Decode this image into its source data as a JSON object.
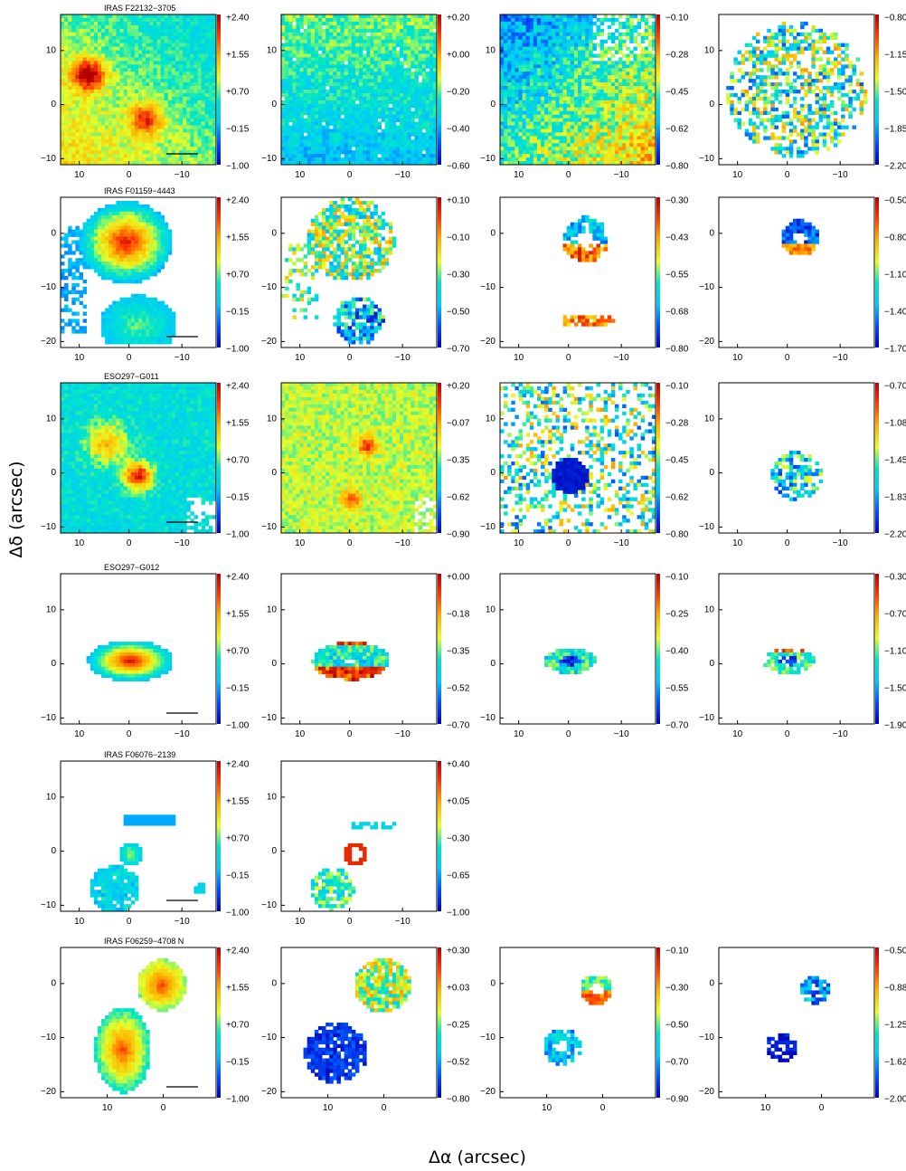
{
  "figure": {
    "xlabel": "Δα (arcsec)",
    "ylabel": "Δδ (arcsec)"
  },
  "colors": {
    "colormap": [
      "#0000b4",
      "#0050ff",
      "#00c8ff",
      "#00e6c8",
      "#e6ff28",
      "#ffb400",
      "#ff3c00",
      "#b40000"
    ]
  },
  "chart_data": [
    {
      "type": "heatmap",
      "title": "IRAS F22132−3705",
      "x_ticks": [
        "10",
        "0",
        "−10"
      ],
      "y_ticks": [
        "10",
        "0",
        "−10"
      ],
      "colorbar_ticks": [
        "+2.40",
        "+1.55",
        "+0.70",
        "−0.15",
        "−1.00"
      ],
      "scale_bar": true
    },
    {
      "type": "heatmap",
      "title": "",
      "x_ticks": [
        "10",
        "0",
        "−10"
      ],
      "y_ticks": [
        "10",
        "0",
        "−10"
      ],
      "colorbar_ticks": [
        "+0.20",
        "+0.00",
        "−0.20",
        "−0.40",
        "−0.60"
      ]
    },
    {
      "type": "heatmap",
      "title": "",
      "x_ticks": [
        "10",
        "0",
        "−10"
      ],
      "y_ticks": [
        "10",
        "0",
        "−10"
      ],
      "colorbar_ticks": [
        "−0.10",
        "−0.28",
        "−0.45",
        "−0.62",
        "−0.80"
      ]
    },
    {
      "type": "heatmap",
      "title": "",
      "x_ticks": [
        "10",
        "0",
        "−10"
      ],
      "y_ticks": [
        "10",
        "0",
        "−10"
      ],
      "colorbar_ticks": [
        "−0.80",
        "−1.15",
        "−1.50",
        "−1.85",
        "−2.20"
      ]
    },
    {
      "type": "heatmap",
      "title": "IRAS F01159−4443",
      "x_ticks": [
        "10",
        "0",
        "−10"
      ],
      "y_ticks": [
        "0",
        "−10",
        "−20"
      ],
      "colorbar_ticks": [
        "+2.40",
        "+1.55",
        "+0.70",
        "−0.15",
        "−1.00"
      ],
      "scale_bar": true
    },
    {
      "type": "heatmap",
      "title": "",
      "x_ticks": [
        "10",
        "0",
        "−10"
      ],
      "y_ticks": [
        "0",
        "−10",
        "−20"
      ],
      "colorbar_ticks": [
        "+0.10",
        "−0.10",
        "−0.30",
        "−0.50",
        "−0.70"
      ]
    },
    {
      "type": "heatmap",
      "title": "",
      "x_ticks": [
        "10",
        "0",
        "−10"
      ],
      "y_ticks": [
        "0",
        "−10",
        "−20"
      ],
      "colorbar_ticks": [
        "−0.30",
        "−0.43",
        "−0.55",
        "−0.68",
        "−0.80"
      ]
    },
    {
      "type": "heatmap",
      "title": "",
      "x_ticks": [
        "10",
        "0",
        "−10"
      ],
      "y_ticks": [
        "0",
        "−10",
        "−20"
      ],
      "colorbar_ticks": [
        "−0.50",
        "−0.80",
        "−1.10",
        "−1.40",
        "−1.70"
      ]
    },
    {
      "type": "heatmap",
      "title": "ESO297−G011",
      "x_ticks": [
        "10",
        "0",
        "−10"
      ],
      "y_ticks": [
        "10",
        "0",
        "−10"
      ],
      "colorbar_ticks": [
        "+2.40",
        "+1.55",
        "+0.70",
        "−0.15",
        "−1.00"
      ],
      "scale_bar": true
    },
    {
      "type": "heatmap",
      "title": "",
      "x_ticks": [
        "10",
        "0",
        "−10"
      ],
      "y_ticks": [
        "10",
        "0",
        "−10"
      ],
      "colorbar_ticks": [
        "+0.20",
        "−0.07",
        "−0.35",
        "−0.62",
        "−0.90"
      ]
    },
    {
      "type": "heatmap",
      "title": "",
      "x_ticks": [
        "10",
        "0",
        "−10"
      ],
      "y_ticks": [
        "10",
        "0",
        "−10"
      ],
      "colorbar_ticks": [
        "−0.10",
        "−0.28",
        "−0.45",
        "−0.62",
        "−0.80"
      ]
    },
    {
      "type": "heatmap",
      "title": "",
      "x_ticks": [
        "10",
        "0",
        "−10"
      ],
      "y_ticks": [
        "10",
        "0",
        "−10"
      ],
      "colorbar_ticks": [
        "−0.70",
        "−1.08",
        "−1.45",
        "−1.83",
        "−2.20"
      ]
    },
    {
      "type": "heatmap",
      "title": "ESO297−G012",
      "x_ticks": [
        "10",
        "0",
        "−10"
      ],
      "y_ticks": [
        "10",
        "0",
        "−10"
      ],
      "colorbar_ticks": [
        "+2.40",
        "+1.55",
        "+0.70",
        "−0.15",
        "−1.00"
      ],
      "scale_bar": true
    },
    {
      "type": "heatmap",
      "title": "",
      "x_ticks": [
        "10",
        "0",
        "−10"
      ],
      "y_ticks": [
        "10",
        "0",
        "−10"
      ],
      "colorbar_ticks": [
        "+0.00",
        "−0.18",
        "−0.35",
        "−0.52",
        "−0.70"
      ]
    },
    {
      "type": "heatmap",
      "title": "",
      "x_ticks": [
        "10",
        "0",
        "−10"
      ],
      "y_ticks": [
        "10",
        "0",
        "−10"
      ],
      "colorbar_ticks": [
        "−0.10",
        "−0.25",
        "−0.40",
        "−0.55",
        "−0.70"
      ]
    },
    {
      "type": "heatmap",
      "title": "",
      "x_ticks": [
        "10",
        "0",
        "−10"
      ],
      "y_ticks": [
        "10",
        "0",
        "−10"
      ],
      "colorbar_ticks": [
        "−0.30",
        "−0.70",
        "−1.10",
        "−1.50",
        "−1.90"
      ]
    },
    {
      "type": "heatmap",
      "title": "IRAS F06076−2139",
      "x_ticks": [
        "10",
        "0",
        "−10"
      ],
      "y_ticks": [
        "10",
        "0",
        "−10"
      ],
      "colorbar_ticks": [
        "+2.40",
        "+1.55",
        "+0.70",
        "−0.15",
        "−1.00"
      ],
      "scale_bar": true
    },
    {
      "type": "heatmap",
      "title": "",
      "x_ticks": [
        "10",
        "0",
        "−10"
      ],
      "y_ticks": [
        "10",
        "0",
        "−10"
      ],
      "colorbar_ticks": [
        "+0.40",
        "+0.05",
        "−0.30",
        "−0.65",
        "−1.00"
      ]
    },
    {
      "type": "heatmap",
      "title": "IRAS F06259−4708 N",
      "x_ticks": [
        "10",
        "0"
      ],
      "y_ticks": [
        "0",
        "−10",
        "−20"
      ],
      "colorbar_ticks": [
        "+2.40",
        "+1.55",
        "+0.70",
        "−0.15",
        "−1.00"
      ],
      "scale_bar": true
    },
    {
      "type": "heatmap",
      "title": "",
      "x_ticks": [
        "10",
        "0"
      ],
      "y_ticks": [
        "0",
        "−10",
        "−20"
      ],
      "colorbar_ticks": [
        "+0.30",
        "+0.03",
        "−0.25",
        "−0.52",
        "−0.80"
      ]
    },
    {
      "type": "heatmap",
      "title": "",
      "x_ticks": [
        "10",
        "0"
      ],
      "y_ticks": [
        "0",
        "−10",
        "−20"
      ],
      "colorbar_ticks": [
        "−0.10",
        "−0.30",
        "−0.50",
        "−0.70",
        "−0.90"
      ]
    },
    {
      "type": "heatmap",
      "title": "",
      "x_ticks": [
        "10",
        "0"
      ],
      "y_ticks": [
        "0",
        "−10",
        "−20"
      ],
      "colorbar_ticks": [
        "−0.50",
        "−0.88",
        "−1.25",
        "−1.62",
        "−2.00"
      ]
    }
  ]
}
